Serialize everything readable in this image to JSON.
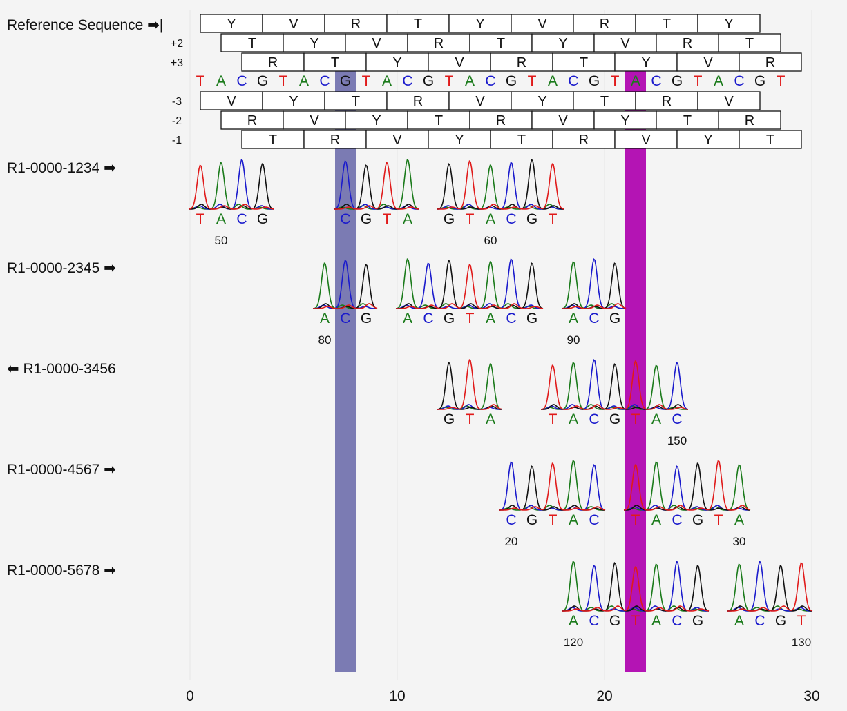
{
  "reference": {
    "title": "Reference Sequence",
    "bases": "TACGTACGTACGTACGTACGTACGTACGT",
    "frames": [
      {
        "label": "",
        "offset": 0,
        "aa": [
          "Y",
          "V",
          "R",
          "T",
          "Y",
          "V",
          "R",
          "T",
          "Y"
        ]
      },
      {
        "label": "+2",
        "offset": 1,
        "aa": [
          "T",
          "Y",
          "V",
          "R",
          "T",
          "Y",
          "V",
          "R",
          "T"
        ]
      },
      {
        "label": "+3",
        "offset": 2,
        "aa": [
          "R",
          "T",
          "Y",
          "V",
          "R",
          "T",
          "Y",
          "V",
          "R"
        ]
      },
      {
        "label": "-3",
        "offset": 0,
        "aa": [
          "V",
          "Y",
          "T",
          "R",
          "V",
          "Y",
          "T",
          "R",
          "V"
        ]
      },
      {
        "label": "-2",
        "offset": 1,
        "aa": [
          "R",
          "V",
          "Y",
          "T",
          "R",
          "V",
          "Y",
          "T",
          "R"
        ]
      },
      {
        "label": "-1",
        "offset": 2,
        "aa": [
          "T",
          "R",
          "V",
          "Y",
          "T",
          "R",
          "V",
          "Y",
          "T"
        ]
      }
    ]
  },
  "highlights": [
    {
      "position": 7,
      "color": "#7b7bb3"
    },
    {
      "position": 21,
      "color": "#b414b4"
    }
  ],
  "base_colors": {
    "A": "#1a7a1a",
    "C": "#1a1acc",
    "G": "#111111",
    "T": "#e01a1a"
  },
  "reads": [
    {
      "name": "R1-0000-1234",
      "direction": "forward",
      "segments": [
        {
          "start": 0,
          "bases": "TACG"
        },
        {
          "start": 7,
          "bases": "CGTA"
        },
        {
          "start": 12,
          "bases": "GTACGT"
        }
      ],
      "ticks": [
        {
          "pos": 1,
          "label": "50"
        },
        {
          "pos": 14,
          "label": "60"
        }
      ]
    },
    {
      "name": "R1-0000-2345",
      "direction": "forward",
      "segments": [
        {
          "start": 6,
          "bases": "ACG"
        },
        {
          "start": 10,
          "bases": "ACGTACG"
        },
        {
          "start": 18,
          "bases": "ACG"
        }
      ],
      "ticks": [
        {
          "pos": 6,
          "label": "80"
        },
        {
          "pos": 18,
          "label": "90"
        }
      ]
    },
    {
      "name": "R1-0000-3456",
      "direction": "reverse",
      "segments": [
        {
          "start": 12,
          "bases": "GTA"
        },
        {
          "start": 17,
          "bases": "TACGTAC"
        }
      ],
      "ticks": [
        {
          "pos": 23,
          "label": "150"
        }
      ]
    },
    {
      "name": "R1-0000-4567",
      "direction": "forward",
      "segments": [
        {
          "start": 15,
          "bases": "CGTAC"
        },
        {
          "start": 21,
          "bases": "TACGTA"
        }
      ],
      "ticks": [
        {
          "pos": 15,
          "label": "20"
        },
        {
          "pos": 26,
          "label": "30"
        }
      ]
    },
    {
      "name": "R1-0000-5678",
      "direction": "forward",
      "segments": [
        {
          "start": 18,
          "bases": "ACGTACG"
        },
        {
          "start": 26,
          "bases": "ACGT"
        }
      ],
      "ticks": [
        {
          "pos": 18,
          "label": "120"
        },
        {
          "pos": 29,
          "label": "130"
        }
      ]
    }
  ],
  "x_axis": {
    "ticks": [
      0,
      10,
      20,
      30
    ],
    "range": [
      0,
      30
    ]
  }
}
